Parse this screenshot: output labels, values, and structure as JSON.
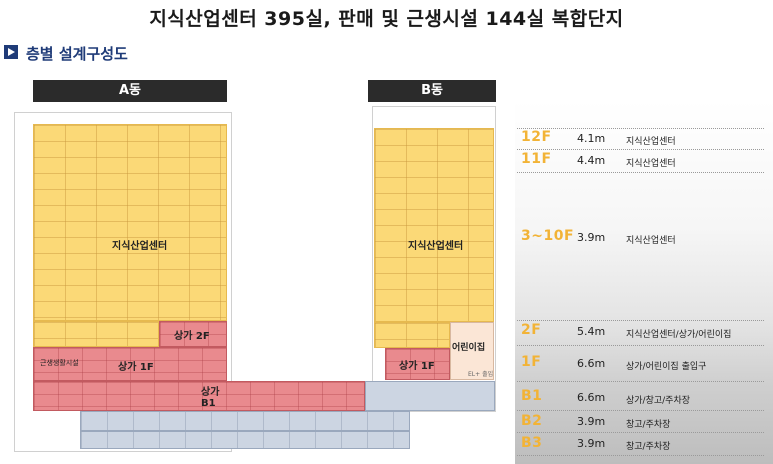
{
  "title": "지식산업센터 395실,  판매 및 근생시설 144실 복합단지",
  "section": {
    "title": "층별 설계구성도",
    "icon": "play-square-icon"
  },
  "buildings": {
    "a": {
      "label": "A동",
      "main_use": "지식산업센터",
      "store_2f": "상가 2F",
      "store_1f": "상가 1F",
      "store_b1": "상가\nB1",
      "side_small": "근생생활시설"
    },
    "b": {
      "label": "B동",
      "main_use": "지식산업센터",
      "store_1f": "상가 1F",
      "daycare": "어린이집",
      "entrance": "EL+ 출입"
    }
  },
  "floors": [
    {
      "floor": "12F",
      "height": "4.1m",
      "use": "지식산업센터"
    },
    {
      "floor": "11F",
      "height": "4.4m",
      "use": "지식산업센터"
    },
    {
      "floor": "3~10F",
      "height": "3.9m",
      "use": "지식산업센터"
    },
    {
      "floor": "2F",
      "height": "5.4m",
      "use": "지식산업센터/상가/어린이집"
    },
    {
      "floor": "1F",
      "height": "6.6m",
      "use": "상가/어린이집 출입구"
    },
    {
      "floor": "B1",
      "height": "6.6m",
      "use": "상가/창고/주차장"
    },
    {
      "floor": "B2",
      "height": "3.9m",
      "use": "창고/주차장"
    },
    {
      "floor": "B3",
      "height": "3.9m",
      "use": "창고/주차장"
    }
  ],
  "colors": {
    "office": "#fbd977",
    "retail": "#e98a8e",
    "parking": "#ccd5e2",
    "floor_label": "#f2b336",
    "header": "#2b2b2b",
    "accent": "#1f3b78"
  }
}
